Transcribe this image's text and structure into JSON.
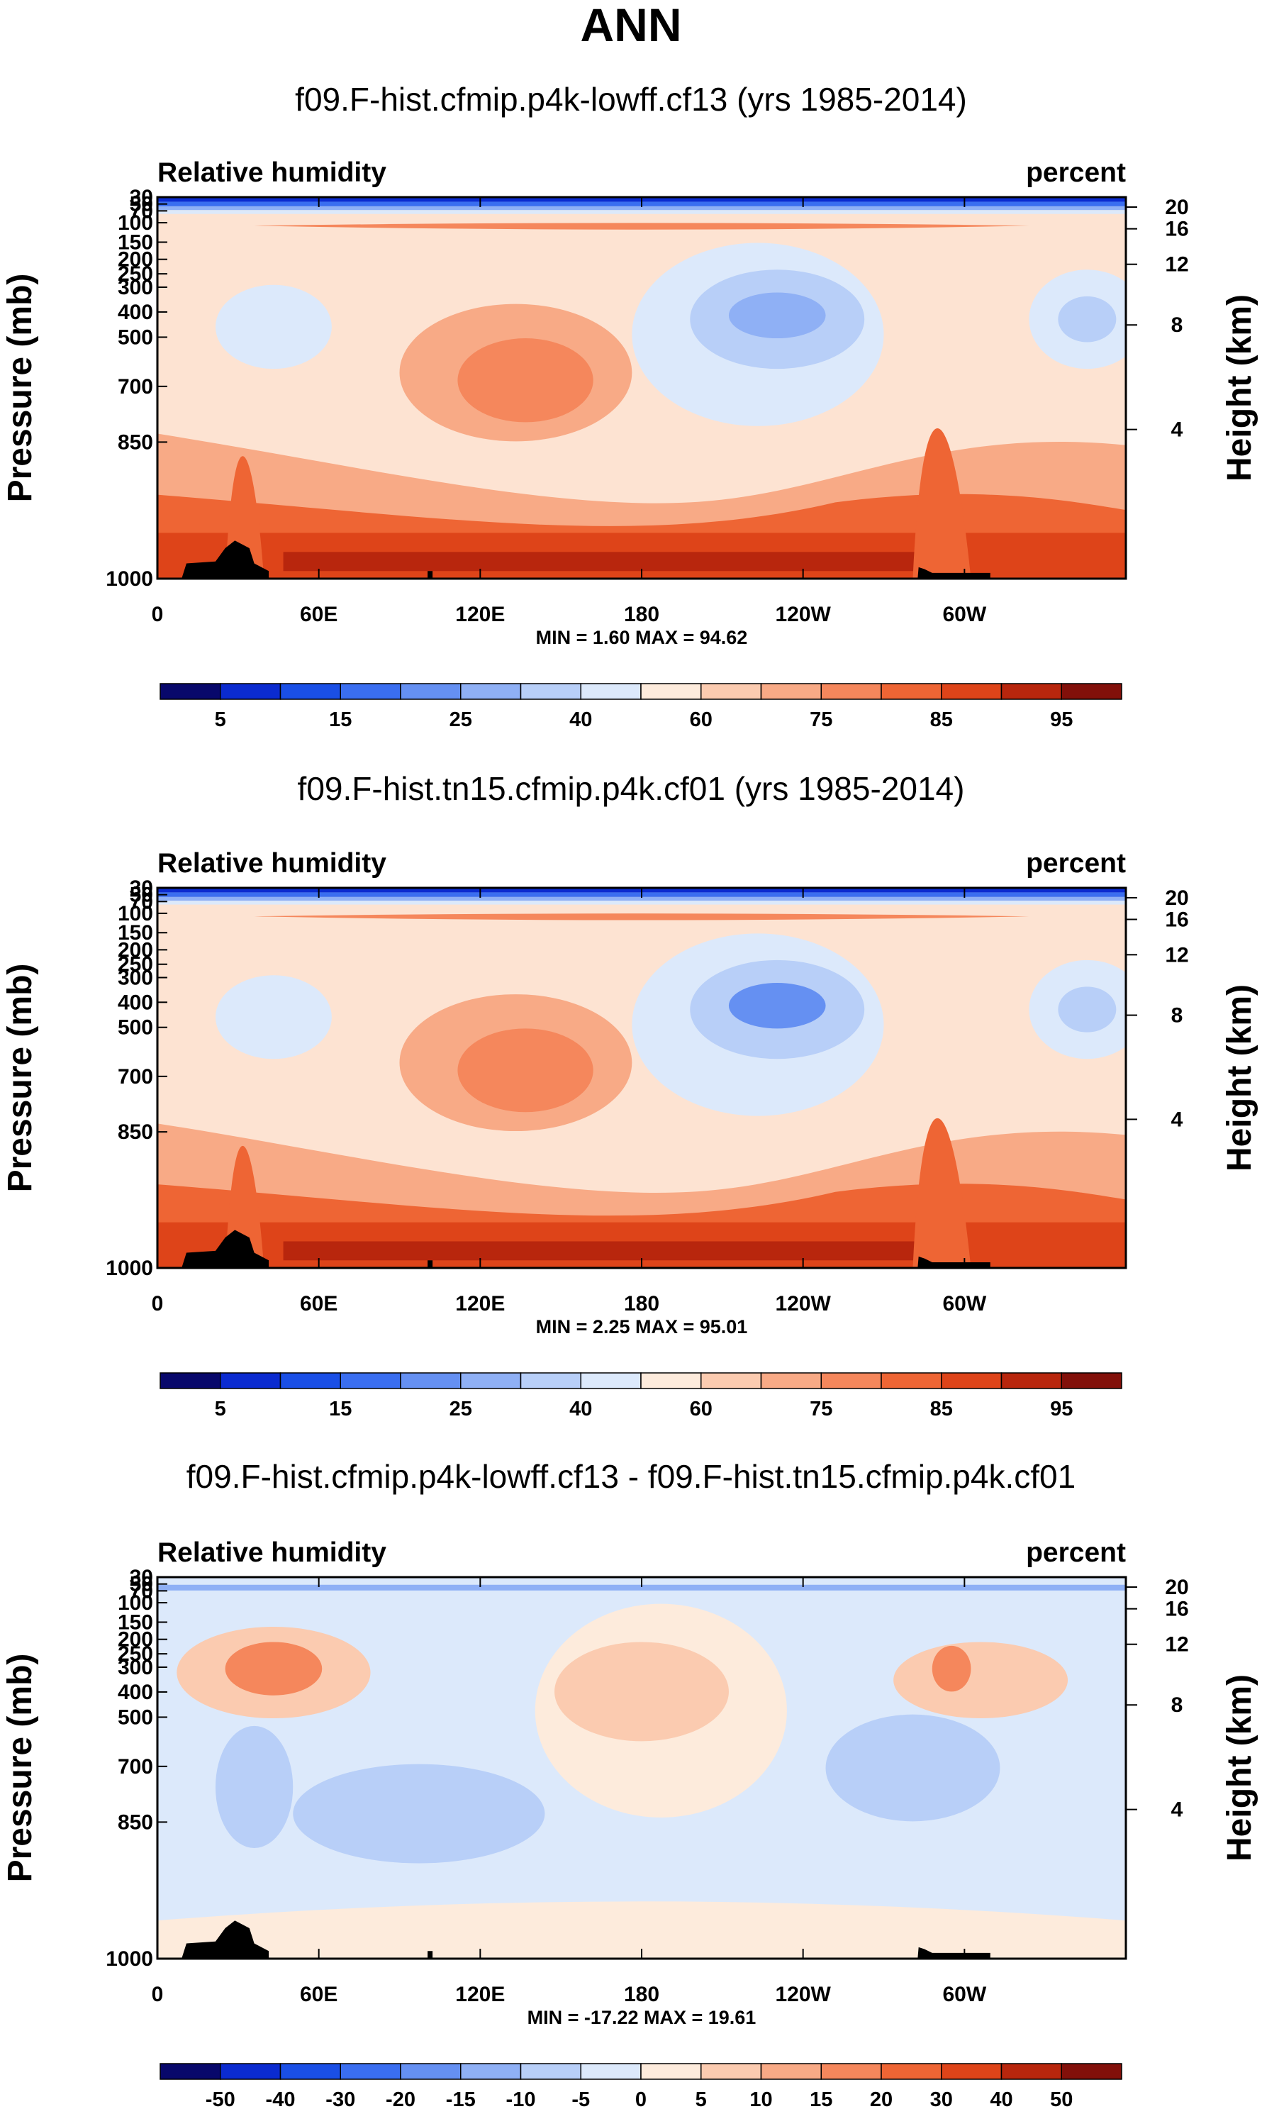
{
  "figure_title": "ANN",
  "chart_data": [
    {
      "type": "heatmap",
      "title": "f09.F-hist.cfmip.p4k-lowff.cf13 (yrs 1985-2014)",
      "left_label": "Relative humidity",
      "right_label": "percent",
      "ylabel": "Pressure (mb)",
      "y2label": "Height (km)",
      "x_ticks": [
        "0",
        "60E",
        "120E",
        "180",
        "120W",
        "60W"
      ],
      "y_ticks": [
        "30",
        "50",
        "70",
        "100",
        "150",
        "200",
        "250",
        "300",
        "400",
        "500",
        "700",
        "850",
        "1000"
      ],
      "y2_ticks": [
        "20",
        "16",
        "12",
        "8",
        "4"
      ],
      "min_max": "MIN =   1.60  MAX =  94.62",
      "colorbar": {
        "labels": [
          "5",
          "15",
          "25",
          "40",
          "60",
          "75",
          "85",
          "95"
        ],
        "colors": [
          "#08086b",
          "#0b2bd0",
          "#1a4fe6",
          "#3a6ef0",
          "#6590f2",
          "#8fb0f5",
          "#b8cff8",
          "#dce9fb",
          "#fdebdc",
          "#fbcbb0",
          "#f8aa86",
          "#f5875c",
          "#ee6534",
          "#de4419",
          "#b8260d",
          "#82100a"
        ]
      },
      "features": {
        "upper_dry_band": "blue",
        "tropopause_moist_band": "red",
        "high_rh_near_surface": "dark red",
        "dry_subsidence_region": "blue"
      }
    },
    {
      "type": "heatmap",
      "title": "f09.F-hist.tn15.cfmip.p4k.cf01 (yrs 1985-2014)",
      "left_label": "Relative humidity",
      "right_label": "percent",
      "ylabel": "Pressure (mb)",
      "y2label": "Height (km)",
      "x_ticks": [
        "0",
        "60E",
        "120E",
        "180",
        "120W",
        "60W"
      ],
      "y_ticks": [
        "30",
        "50",
        "70",
        "100",
        "150",
        "200",
        "250",
        "300",
        "400",
        "500",
        "700",
        "850",
        "1000"
      ],
      "y2_ticks": [
        "20",
        "16",
        "12",
        "8",
        "4"
      ],
      "min_max": "MIN =   2.25  MAX =  95.01",
      "colorbar": {
        "labels": [
          "5",
          "15",
          "25",
          "40",
          "60",
          "75",
          "85",
          "95"
        ],
        "colors": [
          "#08086b",
          "#0b2bd0",
          "#1a4fe6",
          "#3a6ef0",
          "#6590f2",
          "#8fb0f5",
          "#b8cff8",
          "#dce9fb",
          "#fdebdc",
          "#fbcbb0",
          "#f8aa86",
          "#f5875c",
          "#ee6534",
          "#de4419",
          "#b8260d",
          "#82100a"
        ]
      }
    },
    {
      "type": "heatmap",
      "title": "f09.F-hist.cfmip.p4k-lowff.cf13 - f09.F-hist.tn15.cfmip.p4k.cf01",
      "left_label": "Relative humidity",
      "right_label": "percent",
      "ylabel": "Pressure (mb)",
      "y2label": "Height (km)",
      "x_ticks": [
        "0",
        "60E",
        "120E",
        "180",
        "120W",
        "60W"
      ],
      "y_ticks": [
        "30",
        "50",
        "70",
        "100",
        "150",
        "200",
        "250",
        "300",
        "400",
        "500",
        "700",
        "850",
        "1000"
      ],
      "y2_ticks": [
        "20",
        "16",
        "12",
        "8",
        "4"
      ],
      "min_max": "MIN = -17.22  MAX =  19.61",
      "colorbar": {
        "labels": [
          "-50",
          "-40",
          "-30",
          "-20",
          "-15",
          "-10",
          "-5",
          "0",
          "5",
          "10",
          "15",
          "20",
          "30",
          "40",
          "50"
        ],
        "colors": [
          "#08086b",
          "#0b2bd0",
          "#1a4fe6",
          "#3a6ef0",
          "#6590f2",
          "#8fb0f5",
          "#b8cff8",
          "#dce9fb",
          "#fdebdc",
          "#fbcbb0",
          "#f8aa86",
          "#f5875c",
          "#ee6534",
          "#de4419",
          "#b8260d",
          "#82100a"
        ]
      }
    }
  ]
}
